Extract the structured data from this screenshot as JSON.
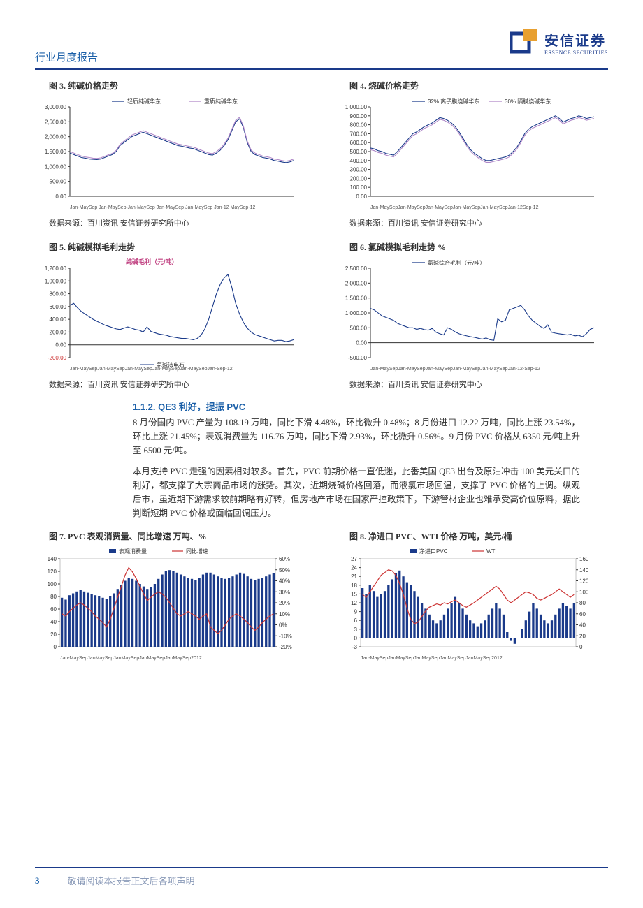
{
  "header": {
    "title": "行业月度报告",
    "logo_cn": "安信证券",
    "logo_en": "ESSENCE SECURITIES"
  },
  "footer": {
    "page": "3",
    "text": "敬请阅读本报告正文后各项声明"
  },
  "source": "数据来源：百川资讯  安信证券研究所中心",
  "source_b": "数据来源：百川资讯  安信证券研究中心",
  "section": {
    "num": "1.1.2.",
    "title": "QE3 利好，提振 PVC"
  },
  "para1": "8 月份国内 PVC 产量为 108.19 万吨，同比下滑 4.48%，环比微升 0.48%；8 月份进口 12.22 万吨，同比上涨 23.54%，环比上涨 21.45%；表观消费量为 116.76 万吨，同比下滑 2.93%，环比微升 0.56%。9 月份 PVC 价格从 6350 元/吨上升至 6500 元/吨。",
  "para2": "本月支持 PVC 走强的因素相对较多。首先，PVC 前期价格一直低迷，此番美国 QE3 出台及原油冲击 100 美元关口的利好，都支撑了大宗商品市场的涨势。其次，近期烧碱价格回落，而液氯市场回温，支撑了 PVC 价格的上调。纵观后市，虽近期下游需求较前期略有好转，但房地产市场在国家严控政策下，下游管材企业也难承受高价位原料，据此判断短期 PVC 价格或面临回调压力。",
  "chart3": {
    "title": "图 3. 纯碱价格走势",
    "type": "line",
    "legend": [
      "轻质纯碱华东",
      "重质纯碱华东"
    ],
    "ylim": [
      0,
      3000
    ],
    "ytick_step": 500,
    "ytick_fmt": ".00",
    "xlabel": "Jan-MaySep Jan-MaySep Jan-MaySep Jan-MaySep Jan-MaySep Jan-12 MaySep-12",
    "colors": {
      "s1": "#1a3a8a",
      "s2": "#b088c8",
      "axis": "#333",
      "text": "#333"
    },
    "series": {
      "s1": [
        1450,
        1400,
        1350,
        1300,
        1280,
        1250,
        1240,
        1230,
        1250,
        1300,
        1350,
        1400,
        1500,
        1700,
        1800,
        1900,
        2000,
        2050,
        2100,
        2150,
        2100,
        2050,
        2000,
        1950,
        1900,
        1850,
        1800,
        1750,
        1700,
        1680,
        1650,
        1620,
        1600,
        1550,
        1500,
        1450,
        1400,
        1380,
        1450,
        1550,
        1700,
        1900,
        2200,
        2500,
        2600,
        2300,
        1800,
        1500,
        1400,
        1350,
        1300,
        1280,
        1250,
        1200,
        1180,
        1150,
        1130,
        1150,
        1200
      ],
      "s2": [
        1500,
        1450,
        1400,
        1350,
        1320,
        1300,
        1280,
        1270,
        1290,
        1340,
        1390,
        1440,
        1540,
        1740,
        1850,
        1950,
        2050,
        2100,
        2150,
        2200,
        2150,
        2100,
        2050,
        2000,
        1950,
        1900,
        1850,
        1800,
        1750,
        1730,
        1700,
        1670,
        1650,
        1600,
        1550,
        1500,
        1450,
        1430,
        1500,
        1600,
        1750,
        1950,
        2250,
        2550,
        2650,
        2350,
        1850,
        1550,
        1450,
        1400,
        1350,
        1330,
        1300,
        1250,
        1230,
        1200,
        1180,
        1200,
        1250
      ]
    }
  },
  "chart4": {
    "title": "图 4. 烧碱价格走势",
    "type": "line",
    "legend": [
      "32% 离子膜烧碱华东",
      "30% 隔膜烧碱华东"
    ],
    "ylim": [
      0,
      1000
    ],
    "ytick_step": 100,
    "ytick_fmt": ".00",
    "xlabel": "Jan-MaySepJan-MaySepJan-MaySepJan-MaySepJan-MaySepJan-12Sep-12",
    "colors": {
      "s1": "#1a3a8a",
      "s2": "#b088c8",
      "axis": "#333",
      "text": "#333"
    },
    "series": {
      "s1": [
        540,
        530,
        510,
        500,
        480,
        470,
        460,
        500,
        550,
        600,
        650,
        700,
        720,
        750,
        780,
        800,
        820,
        850,
        880,
        870,
        850,
        820,
        780,
        720,
        650,
        580,
        520,
        480,
        450,
        420,
        400,
        400,
        410,
        420,
        430,
        440,
        460,
        500,
        550,
        620,
        700,
        750,
        780,
        800,
        820,
        840,
        860,
        880,
        900,
        870,
        830,
        850,
        870,
        880,
        900,
        890,
        870,
        880,
        890
      ],
      "s2": [
        520,
        510,
        490,
        480,
        460,
        450,
        440,
        480,
        530,
        580,
        630,
        680,
        700,
        730,
        760,
        780,
        800,
        830,
        860,
        850,
        830,
        800,
        760,
        700,
        630,
        560,
        500,
        460,
        430,
        400,
        380,
        380,
        390,
        400,
        410,
        420,
        440,
        480,
        530,
        600,
        680,
        730,
        760,
        780,
        800,
        820,
        840,
        860,
        880,
        850,
        810,
        830,
        850,
        860,
        880,
        870,
        850,
        860,
        870
      ]
    }
  },
  "chart5": {
    "title": "图 5. 纯碱模拟毛利走势",
    "type": "line",
    "legend_top": "纯碱毛利（元/吨）",
    "legend_bottom": "氨碱法电石",
    "legend_color": "#c04080",
    "ylim": [
      -200,
      1200
    ],
    "ytick_step": 200,
    "ytick_fmt": ".00",
    "neg_color": "#cc3333",
    "xlabel": "Jan-MaySepJan-MaySepJan-MaySepJan-MaySepJan-MaySepJan-Sep-12",
    "colors": {
      "s1": "#1a3a8a",
      "axis": "#333",
      "text": "#333"
    },
    "series": {
      "s1": [
        620,
        650,
        580,
        520,
        480,
        440,
        400,
        370,
        340,
        310,
        290,
        270,
        250,
        240,
        260,
        280,
        260,
        240,
        230,
        200,
        280,
        210,
        190,
        170,
        160,
        150,
        130,
        120,
        110,
        100,
        100,
        90,
        80,
        100,
        150,
        250,
        400,
        600,
        800,
        950,
        1050,
        1100,
        900,
        650,
        480,
        350,
        260,
        200,
        160,
        140,
        120,
        100,
        80,
        60,
        70,
        70,
        50,
        60,
        80
      ]
    }
  },
  "chart6": {
    "title": "图 6. 氯碱模拟毛利走势    %",
    "type": "line",
    "legend": [
      "氯碱综合毛利（元/吨）"
    ],
    "ylim": [
      -500,
      2500
    ],
    "ytick_step": 500,
    "ytick_fmt": ".00",
    "xlabel": "Jan-MaySepJan-MaySepJan-MaySepJan-MaySepJan-MaySepJan-12-Sep-12",
    "colors": {
      "s1": "#1a3a8a",
      "axis": "#333",
      "text": "#333"
    },
    "series": {
      "s1": [
        1150,
        1100,
        1000,
        900,
        850,
        800,
        750,
        650,
        600,
        550,
        500,
        500,
        450,
        480,
        440,
        420,
        480,
        350,
        300,
        260,
        500,
        450,
        360,
        300,
        260,
        230,
        200,
        180,
        150,
        120,
        160,
        100,
        80,
        800,
        700,
        750,
        1100,
        1150,
        1200,
        1250,
        1100,
        900,
        750,
        650,
        550,
        480,
        600,
        350,
        320,
        300,
        280,
        260,
        280,
        230,
        250,
        200,
        300,
        450,
        500
      ]
    }
  },
  "chart7": {
    "title": "图 7.    PVC 表观消费量、同比增速    万吨、%",
    "type": "bar+line",
    "legend": [
      "表观消费量",
      "同比增速"
    ],
    "ylim_left": [
      0,
      140
    ],
    "ytick_left": 20,
    "ylim_right": [
      -20,
      60
    ],
    "ytick_right": 10,
    "ytick_right_fmt": "%",
    "xlabel": "Jan-MaySepJanMaySepJanMaySepJanMaySepJanMaySep2012",
    "colors": {
      "bar": "#1a3a8a",
      "line": "#cc3333",
      "axis": "#333"
    },
    "bars": [
      78,
      75,
      82,
      85,
      88,
      90,
      88,
      86,
      84,
      82,
      80,
      78,
      76,
      80,
      85,
      92,
      98,
      105,
      110,
      108,
      105,
      100,
      96,
      92,
      95,
      100,
      108,
      115,
      120,
      122,
      120,
      118,
      115,
      112,
      110,
      108,
      106,
      110,
      115,
      118,
      118,
      115,
      112,
      110,
      108,
      110,
      112,
      115,
      118,
      116,
      112,
      108,
      106,
      108,
      110,
      112,
      115,
      117
    ],
    "line": [
      10,
      8,
      12,
      15,
      18,
      20,
      18,
      15,
      12,
      8,
      5,
      2,
      -2,
      5,
      15,
      25,
      35,
      45,
      52,
      48,
      42,
      35,
      28,
      22,
      25,
      28,
      30,
      28,
      25,
      20,
      15,
      10,
      8,
      10,
      12,
      10,
      8,
      5,
      8,
      10,
      -2,
      -5,
      -8,
      -5,
      0,
      5,
      8,
      10,
      8,
      5,
      2,
      -2,
      -5,
      -2,
      2,
      5,
      8,
      10
    ]
  },
  "chart8": {
    "title": "图 8. 净进口 PVC、WTI 价格    万吨，美元/桶",
    "type": "bar+line",
    "legend": [
      "净进口PVC",
      "WTI"
    ],
    "ylim_left": [
      -3,
      27
    ],
    "yticks_left": [
      -3,
      0,
      3,
      6,
      9,
      12,
      15,
      18,
      21,
      24,
      27
    ],
    "ylim_right": [
      0,
      160
    ],
    "ytick_right": 20,
    "xlabel": "Jan-MaySepJanMaySepJanMaySepJanMaySepJanMaySep2012",
    "colors": {
      "bar": "#1a3a8a",
      "line": "#cc3333",
      "axis": "#333"
    },
    "bars": [
      17,
      15,
      18,
      16,
      14,
      15,
      16,
      18,
      20,
      22,
      23,
      21,
      19,
      18,
      16,
      14,
      12,
      10,
      8,
      6,
      5,
      6,
      8,
      10,
      12,
      14,
      12,
      10,
      8,
      6,
      5,
      4,
      5,
      6,
      8,
      10,
      12,
      10,
      8,
      2,
      -1,
      -2,
      0,
      3,
      6,
      9,
      12,
      10,
      8,
      6,
      5,
      6,
      8,
      10,
      12,
      11,
      10,
      12
    ],
    "line": [
      95,
      90,
      100,
      110,
      120,
      130,
      135,
      140,
      138,
      130,
      115,
      95,
      70,
      50,
      42,
      45,
      55,
      65,
      72,
      75,
      78,
      76,
      80,
      78,
      82,
      85,
      80,
      75,
      72,
      76,
      80,
      85,
      90,
      95,
      100,
      105,
      110,
      105,
      95,
      85,
      80,
      85,
      90,
      95,
      100,
      98,
      95,
      88,
      85,
      88,
      92,
      95,
      100,
      105,
      100,
      95,
      90,
      95
    ]
  }
}
